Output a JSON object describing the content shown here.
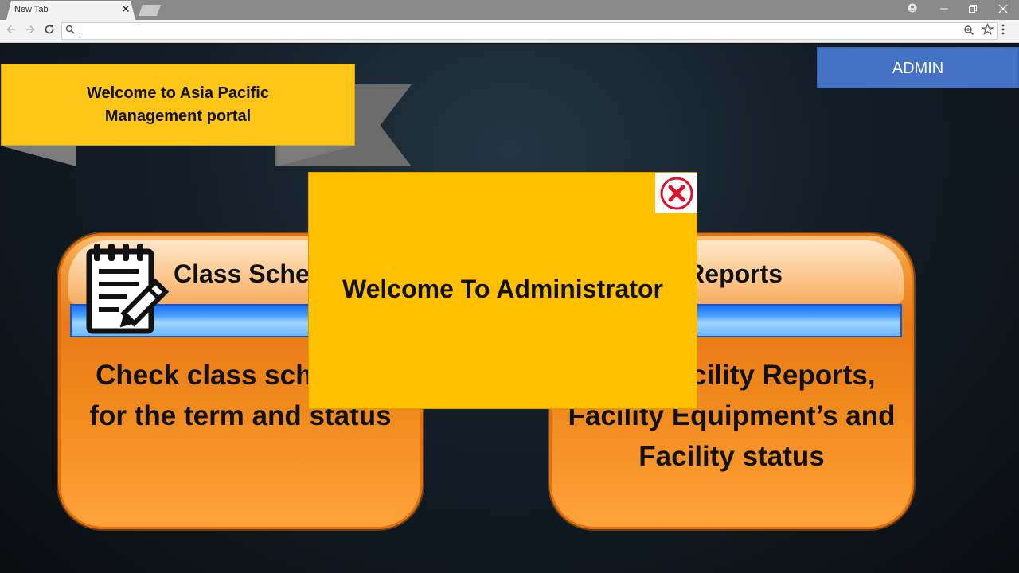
{
  "browser": {
    "tab_title": "New Tab",
    "tab_close": "✕",
    "address_value": "",
    "icons": [
      "search-icon",
      "zoom-icon",
      "star-icon",
      "menu-icon",
      "back-icon",
      "forward-icon",
      "reload-icon",
      "profile-icon"
    ]
  },
  "banner": {
    "title": "Welcome to Asia Pacific Management portal"
  },
  "header": {
    "admin_label": "ADMIN"
  },
  "cards": [
    {
      "title": "Class Schedule",
      "description": "Check class schedule for the term and status"
    },
    {
      "title": "Facility Reports",
      "description": "View Facility Reports, Facility Equipment’s and Facility status"
    }
  ],
  "modal": {
    "title": "Welcome To Administrator"
  },
  "colors": {
    "banner": "#ffc517",
    "admin": "#4472c4",
    "modal": "#ffc000",
    "card": "#ea7a17",
    "close_icon": "#e0102a"
  }
}
